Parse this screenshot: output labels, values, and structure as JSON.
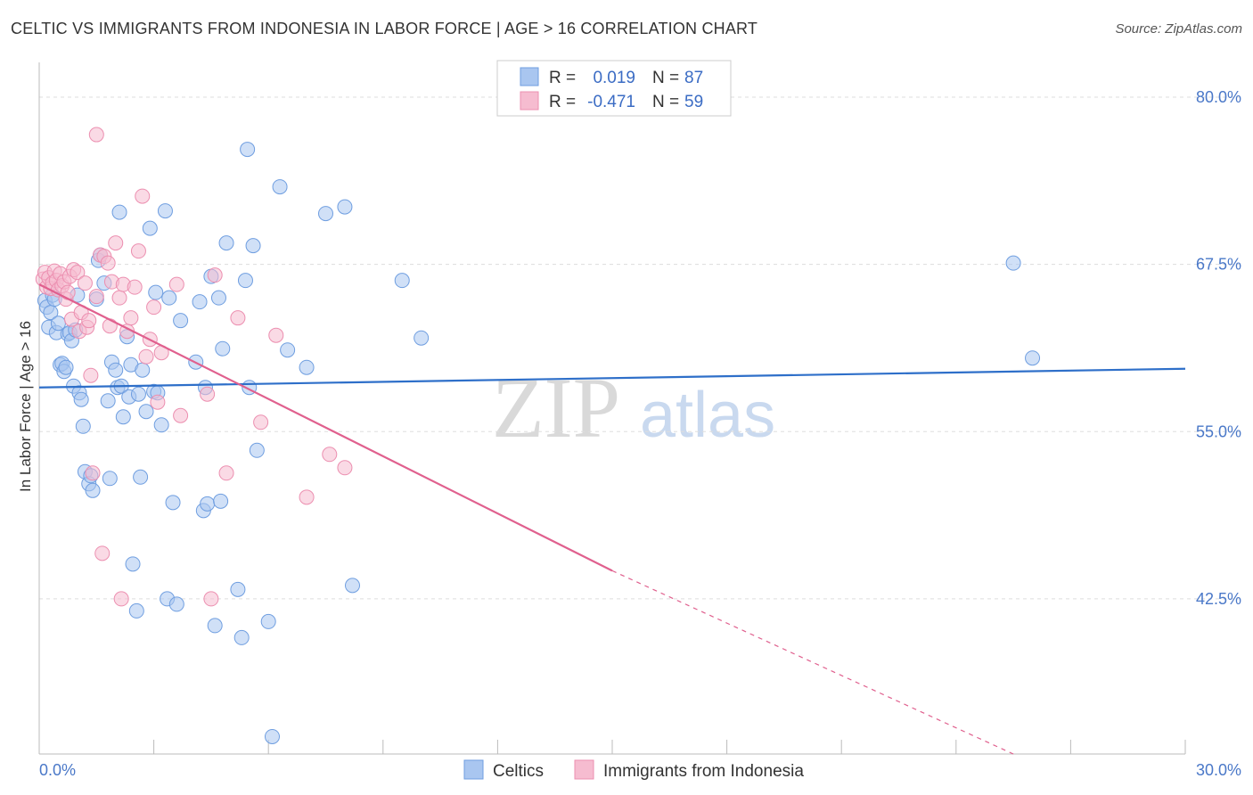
{
  "header": {
    "title": "CELTIC VS IMMIGRANTS FROM INDONESIA IN LABOR FORCE | AGE > 16 CORRELATION CHART",
    "source": "Source: ZipAtlas.com"
  },
  "watermark": {
    "zip": "ZIP",
    "atlas": "atlas"
  },
  "colors": {
    "celtics_fill": "#a9c6f0",
    "celtics_stroke": "#6f9ee0",
    "celtics_line": "#2e6fc9",
    "indonesia_fill": "#f6bcd0",
    "indonesia_stroke": "#ec8fb0",
    "indonesia_line": "#e0608e",
    "tick_text": "#4a78c8",
    "grid": "#dddddd"
  },
  "legend": {
    "rows": [
      {
        "r_label": "R =",
        "r_value": "0.019",
        "n_label": "N =",
        "n_value": "87"
      },
      {
        "r_label": "R =",
        "r_value": "-0.471",
        "n_label": "N =",
        "n_value": "59"
      }
    ]
  },
  "bottom_legend": {
    "items": [
      {
        "label": "Celtics"
      },
      {
        "label": "Immigrants from Indonesia"
      }
    ]
  },
  "chart_data": {
    "type": "scatter",
    "title": "CELTIC VS IMMIGRANTS FROM INDONESIA IN LABOR FORCE | AGE > 16 CORRELATION CHART",
    "xlabel": "",
    "ylabel": "In Labor Force | Age > 16",
    "xlim": [
      0,
      30
    ],
    "ylim": [
      30.9,
      82.6
    ],
    "x_tick_labels": [
      "0.0%",
      "30.0%"
    ],
    "y_ticks": [
      42.5,
      55.0,
      67.5,
      80.0
    ],
    "y_tick_labels": [
      "42.5%",
      "55.0%",
      "67.5%",
      "80.0%"
    ],
    "grid": true,
    "series": [
      {
        "name": "Celtics",
        "R": 0.019,
        "N": 87,
        "trend": {
          "x": [
            0.0,
            30.0
          ],
          "y": [
            58.3,
            59.7
          ]
        },
        "points": [
          [
            0.15,
            64.8
          ],
          [
            0.2,
            64.3
          ],
          [
            0.25,
            62.8
          ],
          [
            0.3,
            63.9
          ],
          [
            0.35,
            65.2
          ],
          [
            0.4,
            64.9
          ],
          [
            0.45,
            62.4
          ],
          [
            0.5,
            63.1
          ],
          [
            0.55,
            60.0
          ],
          [
            0.6,
            60.1
          ],
          [
            0.65,
            59.5
          ],
          [
            0.7,
            59.8
          ],
          [
            0.75,
            62.3
          ],
          [
            0.8,
            62.4
          ],
          [
            0.85,
            61.8
          ],
          [
            0.9,
            58.4
          ],
          [
            0.95,
            62.6
          ],
          [
            1.0,
            65.2
          ],
          [
            1.05,
            57.9
          ],
          [
            1.1,
            57.4
          ],
          [
            1.15,
            55.4
          ],
          [
            1.2,
            52.0
          ],
          [
            1.3,
            51.1
          ],
          [
            1.35,
            51.7
          ],
          [
            1.4,
            50.6
          ],
          [
            1.5,
            64.9
          ],
          [
            1.55,
            67.8
          ],
          [
            1.6,
            68.2
          ],
          [
            1.7,
            66.1
          ],
          [
            1.8,
            57.3
          ],
          [
            1.85,
            51.5
          ],
          [
            1.9,
            60.2
          ],
          [
            2.0,
            59.6
          ],
          [
            2.05,
            58.3
          ],
          [
            2.1,
            71.4
          ],
          [
            2.15,
            58.4
          ],
          [
            2.2,
            56.1
          ],
          [
            2.3,
            62.1
          ],
          [
            2.35,
            57.6
          ],
          [
            2.4,
            60.0
          ],
          [
            2.45,
            45.1
          ],
          [
            2.55,
            41.6
          ],
          [
            2.6,
            57.8
          ],
          [
            2.65,
            51.6
          ],
          [
            2.7,
            59.6
          ],
          [
            2.8,
            56.5
          ],
          [
            2.9,
            70.2
          ],
          [
            3.0,
            58.0
          ],
          [
            3.05,
            65.4
          ],
          [
            3.1,
            57.9
          ],
          [
            3.2,
            55.5
          ],
          [
            3.3,
            71.5
          ],
          [
            3.35,
            42.5
          ],
          [
            3.4,
            65.0
          ],
          [
            3.5,
            49.7
          ],
          [
            3.6,
            42.1
          ],
          [
            3.7,
            63.3
          ],
          [
            4.1,
            60.2
          ],
          [
            4.2,
            64.7
          ],
          [
            4.3,
            49.1
          ],
          [
            4.35,
            58.3
          ],
          [
            4.4,
            49.6
          ],
          [
            4.5,
            66.6
          ],
          [
            4.6,
            40.5
          ],
          [
            4.7,
            65.0
          ],
          [
            4.75,
            49.8
          ],
          [
            4.9,
            69.1
          ],
          [
            4.8,
            61.2
          ],
          [
            5.2,
            43.2
          ],
          [
            5.3,
            39.6
          ],
          [
            5.4,
            66.3
          ],
          [
            5.45,
            76.1
          ],
          [
            5.5,
            58.3
          ],
          [
            5.6,
            68.9
          ],
          [
            5.7,
            53.6
          ],
          [
            6.0,
            40.8
          ],
          [
            6.1,
            32.2
          ],
          [
            6.3,
            73.3
          ],
          [
            6.5,
            61.1
          ],
          [
            7.0,
            59.8
          ],
          [
            7.5,
            71.3
          ],
          [
            8.0,
            71.8
          ],
          [
            8.2,
            43.5
          ],
          [
            9.5,
            66.3
          ],
          [
            10.0,
            62.0
          ],
          [
            25.5,
            67.6
          ],
          [
            26.0,
            60.5
          ]
        ]
      },
      {
        "name": "Immigrants from Indonesia",
        "R": -0.471,
        "N": 59,
        "trend": {
          "x": [
            0.0,
            15.0
          ],
          "y": [
            66.0,
            44.6
          ]
        },
        "trend_dashed": {
          "x": [
            15.0,
            25.5
          ],
          "y": [
            44.6,
            30.9
          ]
        },
        "points": [
          [
            0.1,
            66.4
          ],
          [
            0.15,
            66.9
          ],
          [
            0.2,
            65.8
          ],
          [
            0.25,
            66.5
          ],
          [
            0.3,
            65.7
          ],
          [
            0.35,
            66.1
          ],
          [
            0.4,
            67.0
          ],
          [
            0.45,
            66.3
          ],
          [
            0.5,
            65.6
          ],
          [
            0.55,
            66.8
          ],
          [
            0.6,
            65.9
          ],
          [
            0.65,
            66.2
          ],
          [
            0.7,
            64.9
          ],
          [
            0.75,
            65.4
          ],
          [
            0.8,
            66.6
          ],
          [
            0.85,
            63.4
          ],
          [
            0.9,
            67.1
          ],
          [
            1.0,
            66.9
          ],
          [
            1.05,
            62.5
          ],
          [
            1.1,
            63.9
          ],
          [
            1.2,
            66.1
          ],
          [
            1.25,
            62.8
          ],
          [
            1.3,
            63.3
          ],
          [
            1.35,
            59.2
          ],
          [
            1.4,
            51.9
          ],
          [
            1.5,
            65.1
          ],
          [
            1.6,
            68.2
          ],
          [
            1.65,
            45.9
          ],
          [
            1.7,
            68.1
          ],
          [
            1.8,
            67.6
          ],
          [
            1.85,
            62.9
          ],
          [
            1.9,
            66.2
          ],
          [
            2.0,
            69.1
          ],
          [
            2.1,
            65.0
          ],
          [
            2.15,
            42.5
          ],
          [
            2.2,
            66.0
          ],
          [
            2.3,
            62.5
          ],
          [
            2.4,
            63.5
          ],
          [
            2.5,
            65.8
          ],
          [
            2.6,
            68.5
          ],
          [
            2.7,
            72.6
          ],
          [
            2.8,
            60.6
          ],
          [
            2.9,
            61.9
          ],
          [
            3.0,
            64.3
          ],
          [
            3.1,
            57.2
          ],
          [
            3.2,
            60.9
          ],
          [
            3.6,
            66.0
          ],
          [
            3.7,
            56.2
          ],
          [
            4.4,
            57.8
          ],
          [
            4.5,
            42.5
          ],
          [
            4.6,
            66.7
          ],
          [
            4.9,
            51.9
          ],
          [
            5.2,
            63.5
          ],
          [
            5.8,
            55.7
          ],
          [
            6.2,
            62.2
          ],
          [
            7.0,
            50.1
          ],
          [
            7.6,
            53.3
          ],
          [
            8.0,
            52.3
          ],
          [
            1.5,
            77.2
          ]
        ]
      }
    ]
  }
}
